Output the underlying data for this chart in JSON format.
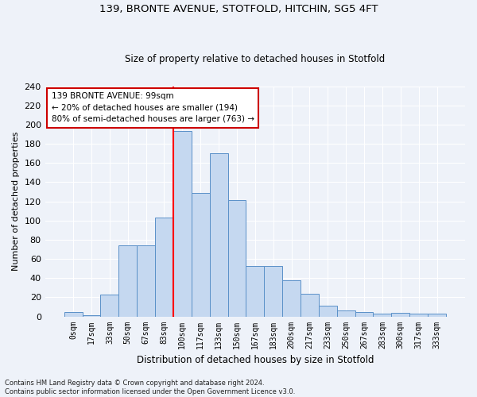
{
  "title1": "139, BRONTE AVENUE, STOTFOLD, HITCHIN, SG5 4FT",
  "title2": "Size of property relative to detached houses in Stotfold",
  "xlabel": "Distribution of detached houses by size in Stotfold",
  "ylabel": "Number of detached properties",
  "categories": [
    "0sqm",
    "17sqm",
    "33sqm",
    "50sqm",
    "67sqm",
    "83sqm",
    "100sqm",
    "117sqm",
    "133sqm",
    "150sqm",
    "167sqm",
    "183sqm",
    "200sqm",
    "217sqm",
    "233sqm",
    "250sqm",
    "267sqm",
    "283sqm",
    "300sqm",
    "317sqm",
    "333sqm"
  ],
  "values": [
    5,
    1,
    23,
    74,
    74,
    103,
    193,
    129,
    170,
    121,
    53,
    53,
    38,
    24,
    11,
    6,
    5,
    3,
    4,
    3,
    3
  ],
  "bar_color": "#c5d8f0",
  "bar_edge_color": "#5a90c8",
  "red_line_index": 6,
  "annotation_line1": "139 BRONTE AVENUE: 99sqm",
  "annotation_line2": "← 20% of detached houses are smaller (194)",
  "annotation_line3": "80% of semi-detached houses are larger (763) →",
  "annotation_box_color": "#ffffff",
  "annotation_box_edge_color": "#cc0000",
  "ylim": [
    0,
    240
  ],
  "yticks": [
    0,
    20,
    40,
    60,
    80,
    100,
    120,
    140,
    160,
    180,
    200,
    220,
    240
  ],
  "footer_line1": "Contains HM Land Registry data © Crown copyright and database right 2024.",
  "footer_line2": "Contains public sector information licensed under the Open Government Licence v3.0.",
  "bg_color": "#eef2f9",
  "grid_color": "#ffffff",
  "bar_width": 1.0
}
